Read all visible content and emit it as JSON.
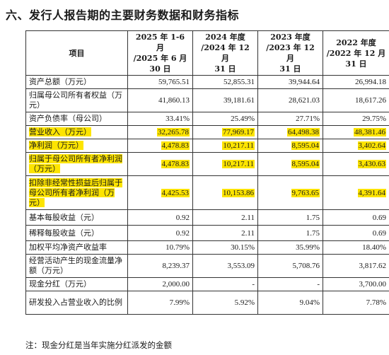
{
  "section_title": "六、发行人报告期的主要财务数据和财务指标",
  "table": {
    "headers": [
      {
        "lines": [
          "项目"
        ]
      },
      {
        "lines": [
          "2025 年 1-6 月",
          "/2025 年 6 月",
          "30 日"
        ]
      },
      {
        "lines": [
          "2024 年度",
          "/2024 年 12 月",
          "31 日"
        ]
      },
      {
        "lines": [
          "2023 年度",
          "/2023 年 12 月",
          "31 日"
        ]
      },
      {
        "lines": [
          "2022 年度",
          "/2022 年 12 月",
          "31 日"
        ]
      }
    ],
    "rows": [
      {
        "label": "资产总额（万元）",
        "values": [
          "59,765.51",
          "52,855.31",
          "39,944.64",
          "26,994.18"
        ],
        "highlight": false
      },
      {
        "label": "归属母公司所有者权益（万元）",
        "values": [
          "41,860.13",
          "39,181.61",
          "28,621.03",
          "18,617.26"
        ],
        "highlight": false
      },
      {
        "label": "资产负债率（母公司）",
        "values": [
          "33.41%",
          "25.49%",
          "27.71%",
          "29.75%"
        ],
        "highlight": false
      },
      {
        "label": "营业收入（万元）",
        "values": [
          "32,265.78",
          "77,969.17",
          "64,498.38",
          "48,381.46"
        ],
        "highlight": true
      },
      {
        "label": "净利润（万元）",
        "values": [
          "4,478.83",
          "10,217.11",
          "8,595.04",
          "3,402.64"
        ],
        "highlight": true
      },
      {
        "label": "归属于母公司所有者净利润（万元）",
        "values": [
          "4,478.83",
          "10,217.11",
          "8,595.04",
          "3,430.63"
        ],
        "highlight": true
      },
      {
        "label": "扣除非经常性损益后归属于母公司所有者净利润（万元）",
        "values": [
          "4,425.53",
          "10,153.86",
          "9,763.65",
          "4,391.64"
        ],
        "highlight": true
      },
      {
        "label": "基本每股收益（元）",
        "values": [
          "0.92",
          "2.11",
          "1.75",
          "0.69"
        ],
        "highlight": false
      },
      {
        "label": "稀释每股收益（元）",
        "values": [
          "0.92",
          "2.11",
          "1.75",
          "0.69"
        ],
        "highlight": false
      },
      {
        "label": "加权平均净资产收益率",
        "values": [
          "10.79%",
          "30.15%",
          "35.99%",
          "18.40%"
        ],
        "highlight": false
      },
      {
        "label": "经营活动产生的现金流量净额（万元）",
        "values": [
          "8,239.37",
          "3,553.09",
          "5,708.76",
          "3,817.62"
        ],
        "highlight": false
      },
      {
        "label": "现金分红（万元）",
        "values": [
          "2,000.00",
          "-",
          "-",
          "3,700.00"
        ],
        "highlight": false
      },
      {
        "label": "研发投入占营业收入的比例",
        "values": [
          "7.99%",
          "5.92%",
          "9.04%",
          "7.78%"
        ],
        "highlight": false
      }
    ],
    "highlight_color": "#fde400"
  },
  "footnote": "注：现金分红是当年实施分红派发的金额"
}
